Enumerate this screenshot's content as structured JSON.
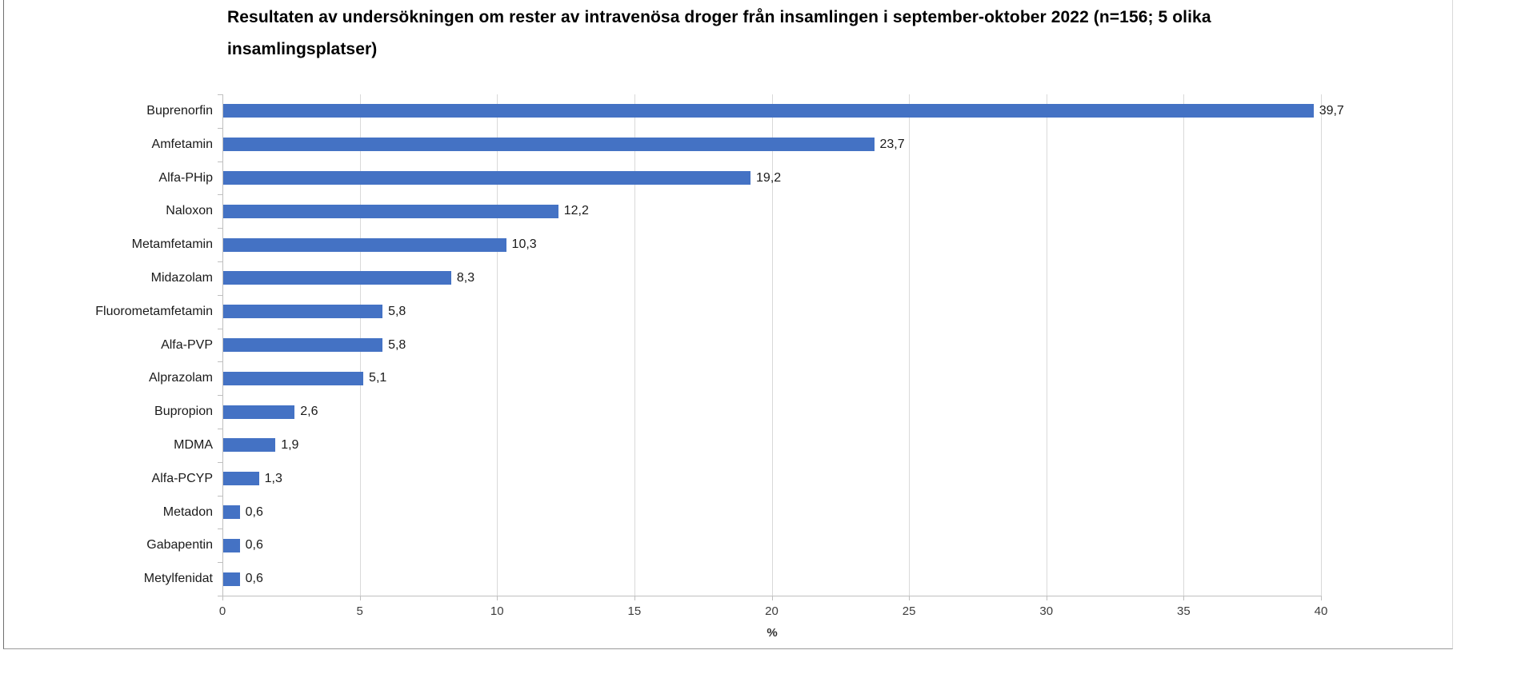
{
  "page": {
    "background_color": "#ffffff",
    "frame_border_colors": {
      "left": "#6f6f6f",
      "bottom": "#9a9a9a",
      "right": "#d9d9d9"
    }
  },
  "chart_data": {
    "type": "bar",
    "orientation": "horizontal",
    "title": "Resultaten av undersökningen om rester av intravenösa droger från insamlingen i september-oktober 2022 (n=156; 5 olika insamlingsplatser)",
    "categories": [
      "Buprenorfin",
      "Amfetamin",
      "Alfa-PHip",
      "Naloxon",
      "Metamfetamin",
      "Midazolam",
      "Fluorometamfetamin",
      "Alfa-PVP",
      "Alprazolam",
      "Bupropion",
      "MDMA",
      "Alfa-PCYP",
      "Metadon",
      "Gabapentin",
      "Metylfenidat"
    ],
    "values": [
      39.7,
      23.7,
      19.2,
      12.2,
      10.3,
      8.3,
      5.8,
      5.8,
      5.1,
      2.6,
      1.9,
      1.3,
      0.6,
      0.6,
      0.6
    ],
    "value_labels": [
      "39,7",
      "23,7",
      "19,2",
      "12,2",
      "10,3",
      "8,3",
      "5,8",
      "5,8",
      "5,1",
      "2,6",
      "1,9",
      "1,3",
      "0,6",
      "0,6",
      "0,6"
    ],
    "xlabel": "%",
    "xlim": [
      0,
      40
    ],
    "xticks": [
      0,
      5,
      10,
      15,
      20,
      25,
      30,
      35,
      40
    ],
    "xtick_labels": [
      "0",
      "5",
      "10",
      "15",
      "20",
      "25",
      "30",
      "35",
      "40"
    ],
    "grid": "vertical major gridlines on",
    "legend": "none",
    "colors": {
      "bar": "#4472c4",
      "gridline": "#d9d9d9",
      "axis": "#bfbfbf",
      "title_text": "#000000",
      "label_text": "#1a1a1a",
      "tick_text": "#3d3d3d"
    }
  }
}
